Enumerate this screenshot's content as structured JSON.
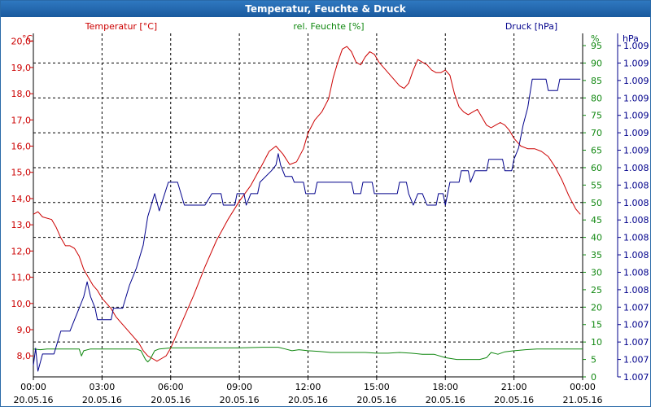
{
  "window": {
    "title": "Temperatur, Feuchte & Druck"
  },
  "colors": {
    "temp": "#cc0000",
    "hum": "#118811",
    "press": "#00008b",
    "grid": "#000000"
  },
  "chart_data": {
    "type": "line",
    "title": "Temperatur, Feuchte & Druck",
    "x_hours_range": [
      0,
      24
    ],
    "x_ticks": [
      {
        "h": 0,
        "time": "00:00",
        "date": "20.05.16"
      },
      {
        "h": 3,
        "time": "03:00",
        "date": "20.05.16"
      },
      {
        "h": 6,
        "time": "06:00",
        "date": "20.05.16"
      },
      {
        "h": 9,
        "time": "09:00",
        "date": "20.05.16"
      },
      {
        "h": 12,
        "time": "12:00",
        "date": "20.05.16"
      },
      {
        "h": 15,
        "time": "15:00",
        "date": "20.05.16"
      },
      {
        "h": 18,
        "time": "18:00",
        "date": "20.05.16"
      },
      {
        "h": 21,
        "time": "21:00",
        "date": "20.05.16"
      },
      {
        "h": 24,
        "time": "00:00",
        "date": "21.05.16"
      }
    ],
    "axes": {
      "left": {
        "label": "Temperatur [°C]",
        "unit": "°C",
        "ylim": [
          7.2,
          20.3
        ],
        "ticks": [
          "8,0",
          "9,0",
          "10,0",
          "11,0",
          "12,0",
          "13,0",
          "14,0",
          "15,0",
          "16,0",
          "17,0",
          "18,0",
          "19,0",
          "20,0"
        ],
        "tick_values": [
          8,
          9,
          10,
          11,
          12,
          13,
          14,
          15,
          16,
          17,
          18,
          19,
          20
        ]
      },
      "middle": {
        "label": "rel. Feuchte [%]",
        "unit": "%",
        "ylim": [
          0,
          98.5
        ],
        "ticks": [
          "0",
          "5",
          "10",
          "15",
          "20",
          "25",
          "30",
          "35",
          "40",
          "45",
          "50",
          "55",
          "60",
          "65",
          "70",
          "75",
          "80",
          "85",
          "90",
          "95"
        ],
        "tick_values": [
          0,
          5,
          10,
          15,
          20,
          25,
          30,
          35,
          40,
          45,
          50,
          55,
          60,
          65,
          70,
          75,
          80,
          85,
          90,
          95
        ]
      },
      "right": {
        "label": "Druck [hPa]",
        "unit": "hPa",
        "ylim": [
          1006.5,
          1009.5
        ],
        "ticks": [
          "1.007",
          "1.007",
          "1.007",
          "1.007",
          "1.007",
          "1.008",
          "1.008",
          "1.008",
          "1.008",
          "1.008",
          "1.008",
          "1.008",
          "1.008",
          "1.009",
          "1.009",
          "1.009",
          "1.009",
          "1.009",
          "1.009",
          "1.009"
        ]
      }
    },
    "series": [
      {
        "name": "Temperatur [°C]",
        "axis": "left",
        "color_key": "temp",
        "points": [
          [
            0,
            13.4
          ],
          [
            0.2,
            13.5
          ],
          [
            0.4,
            13.3
          ],
          [
            0.8,
            13.2
          ],
          [
            1,
            12.9
          ],
          [
            1.2,
            12.5
          ],
          [
            1.4,
            12.2
          ],
          [
            1.6,
            12.2
          ],
          [
            1.8,
            12.1
          ],
          [
            2,
            11.8
          ],
          [
            2.2,
            11.3
          ],
          [
            2.4,
            11
          ],
          [
            2.6,
            10.7
          ],
          [
            2.8,
            10.5
          ],
          [
            3,
            10.2
          ],
          [
            3.2,
            10
          ],
          [
            3.4,
            9.8
          ],
          [
            3.6,
            9.5
          ],
          [
            3.8,
            9.3
          ],
          [
            4,
            9.1
          ],
          [
            4.2,
            8.9
          ],
          [
            4.4,
            8.7
          ],
          [
            4.6,
            8.5
          ],
          [
            4.8,
            8.2
          ],
          [
            5,
            8
          ],
          [
            5.2,
            7.9
          ],
          [
            5.4,
            7.8
          ],
          [
            5.6,
            7.9
          ],
          [
            5.8,
            8
          ],
          [
            6,
            8.3
          ],
          [
            6.3,
            8.9
          ],
          [
            6.6,
            9.5
          ],
          [
            7,
            10.3
          ],
          [
            7.5,
            11.4
          ],
          [
            8,
            12.4
          ],
          [
            8.5,
            13.2
          ],
          [
            9,
            13.9
          ],
          [
            9.5,
            14.5
          ],
          [
            10,
            15.3
          ],
          [
            10.3,
            15.8
          ],
          [
            10.6,
            16
          ],
          [
            10.9,
            15.7
          ],
          [
            11.2,
            15.3
          ],
          [
            11.5,
            15.4
          ],
          [
            11.8,
            15.9
          ],
          [
            12,
            16.5
          ],
          [
            12.3,
            17
          ],
          [
            12.6,
            17.3
          ],
          [
            12.9,
            17.8
          ],
          [
            13.1,
            18.6
          ],
          [
            13.3,
            19.2
          ],
          [
            13.5,
            19.7
          ],
          [
            13.7,
            19.8
          ],
          [
            13.9,
            19.6
          ],
          [
            14.1,
            19.2
          ],
          [
            14.3,
            19.1
          ],
          [
            14.5,
            19.4
          ],
          [
            14.7,
            19.6
          ],
          [
            14.9,
            19.5
          ],
          [
            15.1,
            19.2
          ],
          [
            15.4,
            18.9
          ],
          [
            15.7,
            18.6
          ],
          [
            16,
            18.3
          ],
          [
            16.2,
            18.2
          ],
          [
            16.4,
            18.4
          ],
          [
            16.6,
            18.9
          ],
          [
            16.8,
            19.3
          ],
          [
            17,
            19.2
          ],
          [
            17.2,
            19.1
          ],
          [
            17.4,
            18.9
          ],
          [
            17.6,
            18.8
          ],
          [
            17.8,
            18.8
          ],
          [
            18,
            18.9
          ],
          [
            18.2,
            18.7
          ],
          [
            18.4,
            18
          ],
          [
            18.6,
            17.5
          ],
          [
            18.8,
            17.3
          ],
          [
            19,
            17.2
          ],
          [
            19.2,
            17.3
          ],
          [
            19.4,
            17.4
          ],
          [
            19.6,
            17.1
          ],
          [
            19.8,
            16.8
          ],
          [
            20,
            16.7
          ],
          [
            20.2,
            16.8
          ],
          [
            20.4,
            16.9
          ],
          [
            20.6,
            16.8
          ],
          [
            20.8,
            16.6
          ],
          [
            21,
            16.3
          ],
          [
            21.3,
            16
          ],
          [
            21.6,
            15.9
          ],
          [
            21.9,
            15.9
          ],
          [
            22.2,
            15.8
          ],
          [
            22.5,
            15.6
          ],
          [
            22.8,
            15.2
          ],
          [
            23.1,
            14.7
          ],
          [
            23.4,
            14.1
          ],
          [
            23.7,
            13.6
          ],
          [
            23.9,
            13.4
          ]
        ]
      },
      {
        "name": "rel. Feuchte [%]",
        "axis": "middle",
        "color_key": "hum",
        "points": [
          [
            0,
            8
          ],
          [
            0.3,
            7.8
          ],
          [
            0.6,
            8
          ],
          [
            1,
            8
          ],
          [
            1.5,
            8
          ],
          [
            2,
            8
          ],
          [
            2.1,
            6
          ],
          [
            2.2,
            7.5
          ],
          [
            2.5,
            8
          ],
          [
            3,
            8
          ],
          [
            3.5,
            8
          ],
          [
            4,
            8
          ],
          [
            4.5,
            8
          ],
          [
            4.7,
            7.5
          ],
          [
            4.9,
            5
          ],
          [
            5,
            4.3
          ],
          [
            5.1,
            5
          ],
          [
            5.3,
            7.5
          ],
          [
            5.5,
            8
          ],
          [
            6,
            8.3
          ],
          [
            7,
            8.3
          ],
          [
            8,
            8.3
          ],
          [
            9,
            8.3
          ],
          [
            10,
            8.5
          ],
          [
            10.7,
            8.5
          ],
          [
            11,
            8
          ],
          [
            11.3,
            7.5
          ],
          [
            11.6,
            7.8
          ],
          [
            12,
            7.5
          ],
          [
            12.5,
            7.3
          ],
          [
            13,
            7
          ],
          [
            13.5,
            7
          ],
          [
            14,
            7
          ],
          [
            14.5,
            7
          ],
          [
            15,
            6.8
          ],
          [
            15.5,
            6.8
          ],
          [
            16,
            7
          ],
          [
            16.5,
            6.8
          ],
          [
            17,
            6.5
          ],
          [
            17.5,
            6.5
          ],
          [
            18,
            5.5
          ],
          [
            18.5,
            5
          ],
          [
            19,
            5
          ],
          [
            19.5,
            5
          ],
          [
            19.8,
            5.5
          ],
          [
            20,
            7
          ],
          [
            20.3,
            6.5
          ],
          [
            20.6,
            7.2
          ],
          [
            21,
            7.5
          ],
          [
            21.5,
            7.8
          ],
          [
            22,
            8
          ],
          [
            23,
            8
          ],
          [
            24,
            8
          ]
        ]
      },
      {
        "name": "Druck [hPa]",
        "axis": "right",
        "color_key": "press",
        "points": [
          [
            0,
            1006.6
          ],
          [
            0.1,
            1006.75
          ],
          [
            0.2,
            1006.55
          ],
          [
            0.4,
            1006.7
          ],
          [
            0.9,
            1006.7
          ],
          [
            1.2,
            1006.9
          ],
          [
            1.6,
            1006.9
          ],
          [
            1.8,
            1007.0
          ],
          [
            2.0,
            1007.1
          ],
          [
            2.2,
            1007.2
          ],
          [
            2.35,
            1007.33
          ],
          [
            2.5,
            1007.2
          ],
          [
            2.7,
            1007.1
          ],
          [
            2.8,
            1007.0
          ],
          [
            3.4,
            1007.0
          ],
          [
            3.5,
            1007.1
          ],
          [
            3.9,
            1007.1
          ],
          [
            4.2,
            1007.3
          ],
          [
            4.5,
            1007.45
          ],
          [
            4.8,
            1007.65
          ],
          [
            5.0,
            1007.9
          ],
          [
            5.3,
            1008.1
          ],
          [
            5.5,
            1007.95
          ],
          [
            5.9,
            1008.2
          ],
          [
            6.3,
            1008.2
          ],
          [
            6.6,
            1008.0
          ],
          [
            7.5,
            1008.0
          ],
          [
            7.8,
            1008.1
          ],
          [
            8.2,
            1008.1
          ],
          [
            8.3,
            1008.0
          ],
          [
            8.8,
            1008.0
          ],
          [
            8.9,
            1008.1
          ],
          [
            9.2,
            1008.1
          ],
          [
            9.3,
            1008.0
          ],
          [
            9.5,
            1008.1
          ],
          [
            9.8,
            1008.1
          ],
          [
            9.9,
            1008.2
          ],
          [
            10.4,
            1008.3
          ],
          [
            10.6,
            1008.35
          ],
          [
            10.7,
            1008.45
          ],
          [
            10.8,
            1008.35
          ],
          [
            10.9,
            1008.3
          ],
          [
            11.0,
            1008.25
          ],
          [
            11.3,
            1008.25
          ],
          [
            11.4,
            1008.2
          ],
          [
            11.8,
            1008.2
          ],
          [
            11.9,
            1008.1
          ],
          [
            12.3,
            1008.1
          ],
          [
            12.4,
            1008.2
          ],
          [
            13.9,
            1008.2
          ],
          [
            14.0,
            1008.1
          ],
          [
            14.3,
            1008.1
          ],
          [
            14.4,
            1008.2
          ],
          [
            14.8,
            1008.2
          ],
          [
            14.9,
            1008.1
          ],
          [
            15.9,
            1008.1
          ],
          [
            16.0,
            1008.2
          ],
          [
            16.3,
            1008.2
          ],
          [
            16.4,
            1008.1
          ],
          [
            16.6,
            1008.0
          ],
          [
            16.8,
            1008.1
          ],
          [
            17.0,
            1008.1
          ],
          [
            17.2,
            1008.0
          ],
          [
            17.6,
            1008.0
          ],
          [
            17.7,
            1008.1
          ],
          [
            17.9,
            1008.1
          ],
          [
            18.0,
            1008.0
          ],
          [
            18.2,
            1008.2
          ],
          [
            18.6,
            1008.2
          ],
          [
            18.7,
            1008.3
          ],
          [
            19.0,
            1008.3
          ],
          [
            19.1,
            1008.2
          ],
          [
            19.3,
            1008.3
          ],
          [
            19.8,
            1008.3
          ],
          [
            19.9,
            1008.4
          ],
          [
            20.5,
            1008.4
          ],
          [
            20.6,
            1008.3
          ],
          [
            20.9,
            1008.3
          ],
          [
            21.0,
            1008.4
          ],
          [
            21.2,
            1008.5
          ],
          [
            21.4,
            1008.7
          ],
          [
            21.6,
            1008.85
          ],
          [
            21.8,
            1009.1
          ],
          [
            22.4,
            1009.1
          ],
          [
            22.5,
            1009.0
          ],
          [
            22.9,
            1009.0
          ],
          [
            23.0,
            1009.1
          ],
          [
            23.9,
            1009.1
          ]
        ]
      }
    ]
  }
}
